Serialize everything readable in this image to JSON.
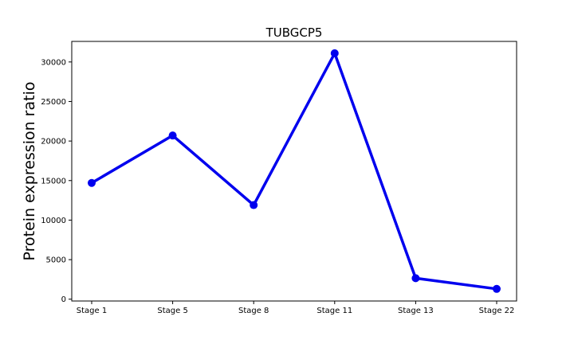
{
  "chart_data": {
    "type": "line",
    "title": "TUBGCP5",
    "xlabel": "",
    "ylabel": "Protein expression ratio",
    "categories": [
      "Stage 1",
      "Stage 5",
      "Stage 8",
      "Stage 11",
      "Stage 13",
      "Stage 22"
    ],
    "series": [
      {
        "values": [
          14700,
          20700,
          11900,
          31100,
          2650,
          1300
        ],
        "color": "#0000ee"
      }
    ],
    "ylim": [
      -230,
      32600
    ],
    "yticks": [
      0,
      5000,
      10000,
      15000,
      20000,
      25000,
      30000
    ],
    "grid": false,
    "legend": "none"
  }
}
